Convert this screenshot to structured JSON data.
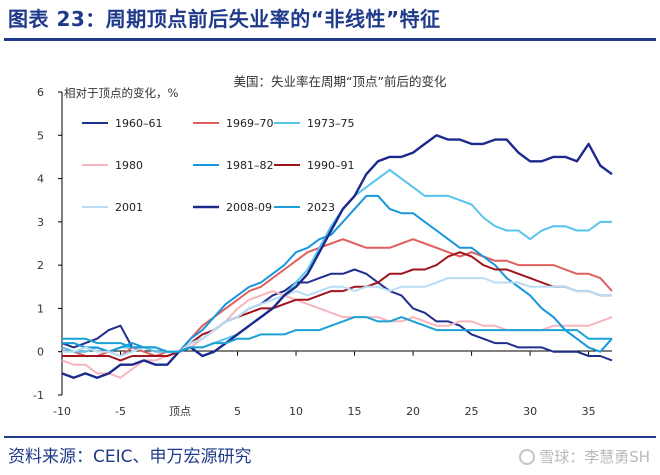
{
  "header": {
    "title": "图表 23：周期顶点前后失业率的“非线性”特征"
  },
  "footer": {
    "source": "资料来源：CEIC、申万宏源研究",
    "watermark": "雪球：李慧勇SH"
  },
  "chart_data": {
    "type": "line",
    "title": "美国：失业率在周期“顶点”前后的变化",
    "ylabel": "相对于顶点的变化，%",
    "xlabel": "",
    "x_peak_label": "顶点",
    "xlim": [
      -10,
      37
    ],
    "ylim": [
      -1,
      6
    ],
    "x_ticks": [
      -10,
      -5,
      5,
      10,
      15,
      20,
      25,
      30,
      35
    ],
    "y_ticks": [
      -1,
      0,
      1,
      2,
      3,
      4,
      5,
      6
    ],
    "grid": false,
    "legend_position": "top-left",
    "x": [
      -10,
      -9,
      -8,
      -7,
      -6,
      -5,
      -4,
      -3,
      -2,
      -1,
      0,
      1,
      2,
      3,
      4,
      5,
      6,
      7,
      8,
      9,
      10,
      11,
      12,
      13,
      14,
      15,
      16,
      17,
      18,
      19,
      20,
      21,
      22,
      23,
      24,
      25,
      26,
      27,
      28,
      29,
      30,
      31,
      32,
      33,
      34,
      35,
      36,
      37
    ],
    "series": [
      {
        "name": "1960–61",
        "color": "#1f2f8c",
        "width": 2,
        "values": [
          0.2,
          0.1,
          0.2,
          0.3,
          0.5,
          0.6,
          0.1,
          0.1,
          0.1,
          0.0,
          0.0,
          0.2,
          0.3,
          0.5,
          0.7,
          0.8,
          1.0,
          1.1,
          1.3,
          1.4,
          1.6,
          1.6,
          1.7,
          1.8,
          1.8,
          1.9,
          1.8,
          1.6,
          1.4,
          1.3,
          1.0,
          0.9,
          0.7,
          0.7,
          0.6,
          0.4,
          0.3,
          0.2,
          0.2,
          0.1,
          0.1,
          0.1,
          0.0,
          0.0,
          0.0,
          -0.1,
          -0.1,
          -0.2
        ]
      },
      {
        "name": "1969–70",
        "color": "#e0605f",
        "width": 2,
        "values": [
          0.1,
          0.0,
          -0.1,
          -0.1,
          0.0,
          -0.1,
          0.1,
          0.0,
          -0.1,
          0.0,
          0.0,
          0.3,
          0.6,
          0.8,
          1.0,
          1.2,
          1.4,
          1.5,
          1.7,
          1.9,
          2.1,
          2.3,
          2.4,
          2.5,
          2.6,
          2.5,
          2.4,
          2.4,
          2.4,
          2.5,
          2.6,
          2.5,
          2.4,
          2.3,
          2.2,
          2.3,
          2.2,
          2.1,
          2.1,
          2.0,
          2.0,
          2.0,
          2.0,
          1.9,
          1.8,
          1.8,
          1.7,
          1.4
        ]
      },
      {
        "name": "1973–75",
        "color": "#56c4ec",
        "width": 2,
        "values": [
          0.1,
          0.0,
          0.0,
          0.1,
          0.0,
          0.1,
          0.1,
          0.1,
          0.0,
          0.0,
          0.0,
          0.1,
          0.1,
          0.2,
          0.3,
          0.4,
          0.6,
          0.8,
          1.0,
          1.3,
          1.6,
          1.9,
          2.4,
          2.9,
          3.3,
          3.6,
          3.8,
          4.0,
          4.2,
          4.0,
          3.8,
          3.6,
          3.6,
          3.6,
          3.5,
          3.4,
          3.1,
          2.9,
          2.8,
          2.8,
          2.6,
          2.8,
          2.9,
          2.9,
          2.8,
          2.8,
          3.0,
          3.0
        ]
      },
      {
        "name": "1980",
        "color": "#f5b6bd",
        "width": 2,
        "values": [
          -0.2,
          -0.3,
          -0.3,
          -0.5,
          -0.5,
          -0.6,
          -0.4,
          -0.2,
          -0.2,
          -0.1,
          0.0,
          0.1,
          0.3,
          0.5,
          0.7,
          1.0,
          1.2,
          1.3,
          1.4,
          1.3,
          1.2,
          1.1,
          1.0,
          0.9,
          0.8,
          0.8,
          0.8,
          0.8,
          0.7,
          0.7,
          0.8,
          0.7,
          0.6,
          0.6,
          0.7,
          0.7,
          0.6,
          0.6,
          0.5,
          0.5,
          0.5,
          0.5,
          0.6,
          0.6,
          0.6,
          0.6,
          0.7,
          0.8
        ]
      },
      {
        "name": "1981–82",
        "color": "#1897dc",
        "width": 2,
        "values": [
          0.2,
          0.2,
          0.1,
          0.1,
          0.0,
          0.1,
          0.2,
          0.1,
          0.1,
          0.0,
          0.0,
          0.3,
          0.5,
          0.8,
          1.1,
          1.3,
          1.5,
          1.6,
          1.8,
          2.0,
          2.3,
          2.4,
          2.6,
          2.7,
          3.0,
          3.3,
          3.6,
          3.6,
          3.3,
          3.2,
          3.2,
          3.0,
          2.8,
          2.6,
          2.4,
          2.4,
          2.2,
          2.0,
          1.7,
          1.5,
          1.3,
          1.0,
          0.8,
          0.5,
          0.3,
          0.1,
          0.0,
          0.3
        ]
      },
      {
        "name": "1990–91",
        "color": "#a0141e",
        "width": 2,
        "values": [
          -0.1,
          -0.1,
          -0.1,
          -0.1,
          -0.1,
          -0.2,
          -0.1,
          -0.1,
          -0.1,
          -0.1,
          0.0,
          0.2,
          0.4,
          0.5,
          0.7,
          0.8,
          0.9,
          1.0,
          1.0,
          1.1,
          1.2,
          1.2,
          1.3,
          1.4,
          1.4,
          1.5,
          1.5,
          1.6,
          1.8,
          1.8,
          1.9,
          1.9,
          2.0,
          2.2,
          2.3,
          2.2,
          2.0,
          1.9,
          1.9,
          1.8,
          1.7,
          1.6,
          1.5,
          1.5,
          1.4,
          1.4,
          1.3,
          1.3
        ]
      },
      {
        "name": "2001",
        "color": "#b8ddf4",
        "width": 2,
        "values": [
          0.0,
          0.0,
          0.1,
          0.0,
          0.0,
          -0.1,
          0.0,
          0.1,
          0.1,
          0.0,
          0.0,
          0.2,
          0.3,
          0.5,
          0.7,
          0.8,
          1.0,
          1.1,
          1.2,
          1.3,
          1.4,
          1.3,
          1.4,
          1.5,
          1.5,
          1.4,
          1.5,
          1.5,
          1.4,
          1.5,
          1.5,
          1.5,
          1.6,
          1.7,
          1.7,
          1.7,
          1.7,
          1.6,
          1.6,
          1.6,
          1.5,
          1.5,
          1.5,
          1.5,
          1.4,
          1.4,
          1.3,
          1.3
        ]
      },
      {
        "name": "2008-09",
        "color": "#1b2a8c",
        "width": 2.4,
        "values": [
          -0.5,
          -0.6,
          -0.5,
          -0.6,
          -0.5,
          -0.3,
          -0.3,
          -0.2,
          -0.3,
          -0.3,
          0.0,
          0.1,
          -0.1,
          0.0,
          0.2,
          0.4,
          0.6,
          0.8,
          1.0,
          1.3,
          1.5,
          1.8,
          2.3,
          2.8,
          3.3,
          3.6,
          4.1,
          4.4,
          4.5,
          4.5,
          4.6,
          4.8,
          5.0,
          4.9,
          4.9,
          4.8,
          4.8,
          4.9,
          4.9,
          4.6,
          4.4,
          4.4,
          4.5,
          4.5,
          4.4,
          4.8,
          4.3,
          4.1
        ]
      },
      {
        "name": "2023",
        "color": "#1ba1d6",
        "width": 2,
        "values": [
          0.3,
          0.3,
          0.3,
          0.2,
          0.2,
          0.2,
          0.1,
          0.1,
          0.1,
          0.0,
          0.0,
          0.1,
          0.1,
          0.2,
          0.2,
          0.3,
          0.3,
          0.4,
          0.4,
          0.4,
          0.5,
          0.5,
          0.5,
          0.6,
          0.7,
          0.8,
          0.8,
          0.7,
          0.7,
          0.8,
          0.7,
          0.6,
          0.5,
          0.5,
          0.5,
          0.5,
          0.5,
          0.5,
          0.5,
          0.5,
          0.5,
          0.5,
          0.5,
          0.5,
          0.5,
          0.3,
          0.3,
          0.3
        ]
      }
    ]
  }
}
